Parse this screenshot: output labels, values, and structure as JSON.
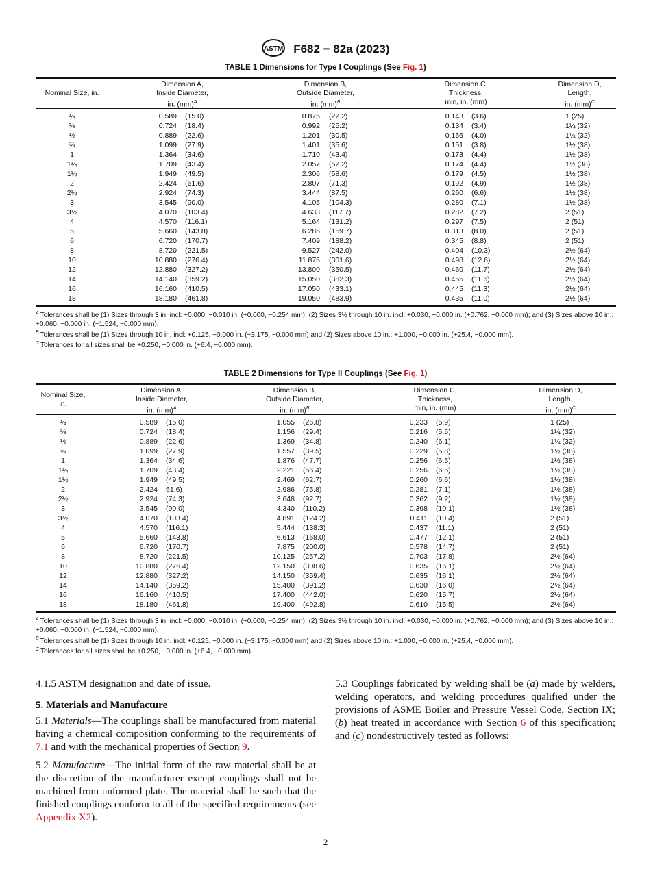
{
  "header": {
    "designation": "F682 − 82a (2023)",
    "logo": "ASTM"
  },
  "tables": [
    {
      "title_prefix": "TABLE 1 Dimensions for Type I Couplings (See ",
      "title_link": "Fig. 1",
      "title_suffix": ")",
      "headers": [
        "Nominal Size, in.",
        "Dimension A,\nInside Diameter,\nin. (mm)",
        "Dimension B,\nOutside Diameter,\nin. (mm)",
        "Dimension C,\nThickness,\nmin, in. (mm)",
        "Dimension D,\nLength,\nin. (mm)"
      ],
      "header_sups": [
        "",
        "A",
        "B",
        "",
        "C"
      ],
      "rows": [
        [
          "¼",
          "0.589",
          "(15.0)",
          "0.875",
          "(22.2)",
          "0.143",
          "(3.6)",
          "1 (25)"
        ],
        [
          "⅜",
          "0.724",
          "(18.4)",
          "0.992",
          "(25.2)",
          "0.134",
          "(3.4)",
          "1¼ (32)"
        ],
        [
          "½",
          "0.889",
          "(22.6)",
          "1.201",
          "(30.5)",
          "0.156",
          "(4.0)",
          "1¼ (32)"
        ],
        [
          "¾",
          "1.099",
          "(27.9)",
          "1.401",
          "(35.6)",
          "0.151",
          "(3.8)",
          "1½ (38)"
        ],
        [
          "1",
          "1.364",
          "(34.6)",
          "1.710",
          "(43.4)",
          "0.173",
          "(4.4)",
          "1½ (38)"
        ],
        [
          "1¼",
          "1.709",
          "(43.4)",
          "2.057",
          "(52.2)",
          "0.174",
          "(4.4)",
          "1½ (38)"
        ],
        [
          "1½",
          "1.949",
          "(49.5)",
          "2.306",
          "(58.6)",
          "0.179",
          "(4.5)",
          "1½ (38)"
        ],
        [
          "2",
          "2.424",
          "(61.6)",
          "2.807",
          "(71.3)",
          "0.192",
          "(4.9)",
          "1½ (38)"
        ],
        [
          "2½",
          "2.924",
          "(74.3)",
          "3.444",
          "(87.5)",
          "0.260",
          "(6.6)",
          "1½ (38)"
        ],
        [
          "3",
          "3.545",
          "(90.0)",
          "4.105",
          "(104.3)",
          "0.280",
          "(7.1)",
          "1½ (38)"
        ],
        [
          "3½",
          "4.070",
          "(103.4)",
          "4.633",
          "(117.7)",
          "0.282",
          "(7.2)",
          "2 (51)"
        ],
        [
          "4",
          "4.570",
          "(116.1)",
          "5.164",
          "(131.2)",
          "0.297",
          "(7.5)",
          "2 (51)"
        ],
        [
          "5",
          "5.660",
          "(143.8)",
          "6.286",
          "(159.7)",
          "0.313",
          "(8.0)",
          "2 (51)"
        ],
        [
          "6",
          "6.720",
          "(170.7)",
          "7.409",
          "(188.2)",
          "0.345",
          "(8.8)",
          "2 (51)"
        ],
        [
          "8",
          "8.720",
          "(221.5)",
          "9.527",
          "(242.0)",
          "0.404",
          "(10.3)",
          "2½ (64)"
        ],
        [
          "10",
          "10.880",
          "(276.4)",
          "11.875",
          "(301.6)",
          "0.498",
          "(12.6)",
          "2½ (64)"
        ],
        [
          "12",
          "12.880",
          "(327.2)",
          "13.800",
          "(350.5)",
          "0.460",
          "(11.7)",
          "2½ (64)"
        ],
        [
          "14",
          "14.140",
          "(359.2)",
          "15.050",
          "(382.3)",
          "0.455",
          "(11.6)",
          "2½ (64)"
        ],
        [
          "16",
          "16.160",
          "(410.5)",
          "17.050",
          "(433.1)",
          "0.445",
          "(11.3)",
          "2½ (64)"
        ],
        [
          "18",
          "18.180",
          "(461.8)",
          "19.050",
          "(483.9)",
          "0.435",
          "(11.0)",
          "2½ (64)"
        ]
      ],
      "footnotes": [
        {
          "mark": "A",
          "text": "Tolerances shall be (1) Sizes through 3 in. incl: +0.000, −0.010 in. (+0.000, −0.254 mm); (2) Sizes 3½ through 10 in. incl: +0.030, −0.000 in. (+0.762, −0.000 mm); and (3) Sizes above 10 in.: +0.060, −0.000 in. (+1.524, −0.000 mm)."
        },
        {
          "mark": "B",
          "text": "Tolerances shall be (1) Sizes through 10 in. incl: +0.125, −0.000 in. (+3.175, −0.000 mm) and (2) Sizes above 10 in.: +1.000, −0.000 in. (+25.4, −0.000 mm)."
        },
        {
          "mark": "C",
          "text": "Tolerances for all sizes shall be +0.250, −0.000 in. (+6.4, −0.000 mm)."
        }
      ]
    },
    {
      "title_prefix": "TABLE 2 Dimensions for Type II Couplings (See ",
      "title_link": "Fig. 1",
      "title_suffix": ")",
      "headers": [
        "Nominal Size,\nin.",
        "Dimension A,\nInside Diameter,\nin. (mm)",
        "Dimension B,\nOutside Diameter,\nin. (mm)",
        "Dimension C,\nThickness,\nmin, in. (mm)",
        "Dimension D,\nLength,\nin. (mm)"
      ],
      "header_sups": [
        "",
        "A",
        "B",
        "",
        "C"
      ],
      "rows": [
        [
          "¼",
          "0.589",
          "(15.0)",
          "1.055",
          "(26.8)",
          "0.233",
          "(5.9)",
          "1 (25)"
        ],
        [
          "⅜",
          "0.724",
          "(18.4)",
          "1.156",
          "(29.4)",
          "0.216",
          "(5.5)",
          "1¼ (32)"
        ],
        [
          "½",
          "0.889",
          "(22.6)",
          "1.369",
          "(34.8)",
          "0.240",
          "(6.1)",
          "1¼ (32)"
        ],
        [
          "¾",
          "1.099",
          "(27.9)",
          "1.557",
          "(39.5)",
          "0.229",
          "(5.8)",
          "1½ (38)"
        ],
        [
          "1",
          "1.364",
          "(34.6)",
          "1.876",
          "(47.7)",
          "0.256",
          "(6.5)",
          "1½ (38)"
        ],
        [
          "1¼",
          "1.709",
          "(43.4)",
          "2.221",
          "(56.4)",
          "0.256",
          "(6.5)",
          "1½ (38)"
        ],
        [
          "1½",
          "1.949",
          "(49.5)",
          "2.469",
          "(62.7)",
          "0.260",
          "(6.6)",
          "1½ (38)"
        ],
        [
          "2",
          "2.424",
          "61.6)",
          "2.986",
          "(75.8)",
          "0.281",
          "(7.1)",
          "1½ (38)"
        ],
        [
          "2½",
          "2.924",
          "(74.3)",
          "3.648",
          "(92.7)",
          "0.362",
          "(9.2)",
          "1½ (38)"
        ],
        [
          "3",
          "3.545",
          "(90.0)",
          "4.340",
          "(110.2)",
          "0.398",
          "(10.1)",
          "1½ (38)"
        ],
        [
          "3½",
          "4.070",
          "(103.4)",
          "4.891",
          "(124.2)",
          "0.411",
          "(10.4)",
          "2 (51)"
        ],
        [
          "4",
          "4.570",
          "(116.1)",
          "5.444",
          "(138.3)",
          "0.437",
          "(11.1)",
          "2 (51)"
        ],
        [
          "5",
          "5.660",
          "(143.8)",
          "6.613",
          "(168.0)",
          "0.477",
          "(12.1)",
          "2 (51)"
        ],
        [
          "6",
          "6.720",
          "(170.7)",
          "7.875",
          "(200.0)",
          "0.578",
          "(14.7)",
          "2 (51)"
        ],
        [
          "8",
          "8.720",
          "(221.5)",
          "10.125",
          "(257.2)",
          "0.703",
          "(17.8)",
          "2½ (64)"
        ],
        [
          "10",
          "10.880",
          "(276.4)",
          "12.150",
          "(308.6)",
          "0.635",
          "(16.1)",
          "2½ (64)"
        ],
        [
          "12",
          "12.880",
          "(327.2)",
          "14.150",
          "(359.4)",
          "0.635",
          "(16.1)",
          "2½ (64)"
        ],
        [
          "14",
          "14.140",
          "(359.2)",
          "15.400",
          "(391.2)",
          "0.630",
          "(16.0)",
          "2½ (64)"
        ],
        [
          "16",
          "16.160",
          "(410.5)",
          "17.400",
          "(442.0)",
          "0.620",
          "(15.7)",
          "2½ (64)"
        ],
        [
          "18",
          "18.180",
          "(461.8)",
          "19.400",
          "(492.8)",
          "0.610",
          "(15.5)",
          "2½ (64)"
        ]
      ],
      "footnotes": [
        {
          "mark": "A",
          "text": "Tolerances shall be (1) Sizes through 3 in. incl: +0.000, −0.010 in. (+0.000, −0.254 mm); (2) Sizes 3½ through 10 in. incl: +0.030, −0.000 in. (+0.762, −0.000 mm); and (3) Sizes above 10 in.: +0.060, −0.000 in. (+1.524, −0.000 mm)."
        },
        {
          "mark": "B",
          "text": "Tolerances shall be (1) Sizes through 10 in. incl: +0.125, −0.000 in. (+3.175, −0.000 mm) and (2) Sizes above 10 in.: +1.000, −0.000 in. (+25.4, −0.000 mm)."
        },
        {
          "mark": "C",
          "text": "Tolerances for all sizes shall be +0.250, −0.000 in. (+6.4, −0.000 mm)."
        }
      ]
    }
  ],
  "body": {
    "p415": "4.1.5 ASTM designation and date of issue.",
    "section5": "5. Materials and Manufacture",
    "p51_num": "5.1 ",
    "p51_term": "Materials",
    "p51_a": "—The couplings shall be manufactured from material having a chemical composition conforming to the requirements of ",
    "p51_link1": "7.1",
    "p51_b": " and with the mechanical properties of Section ",
    "p51_link2": "9",
    "p51_c": ".",
    "p52_num": "5.2 ",
    "p52_term": "Manufacture",
    "p52_a": "—The initial form of the raw material shall be at the discretion of the manufacturer except couplings shall not be machined from unformed plate. The material shall be such that the finished couplings conform to all of the specified requirements (see ",
    "p52_link": "Appendix X2",
    "p52_b": ").",
    "p53_a": "5.3 Couplings fabricated by welding shall be (",
    "p53_ia": "a",
    "p53_b": ") made by welders, welding operators, and welding procedures qualified under the provisions of ASME Boiler and Pressure Vessel Code, Section IX; (",
    "p53_ib": "b",
    "p53_c": ") heat treated in accordance with Section ",
    "p53_link": "6",
    "p53_d": " of this specification; and (",
    "p53_ic": "c",
    "p53_e": ") nondestructively tested as follows:"
  },
  "page_number": "2",
  "colors": {
    "link": "#d0121b",
    "text": "#111111"
  }
}
